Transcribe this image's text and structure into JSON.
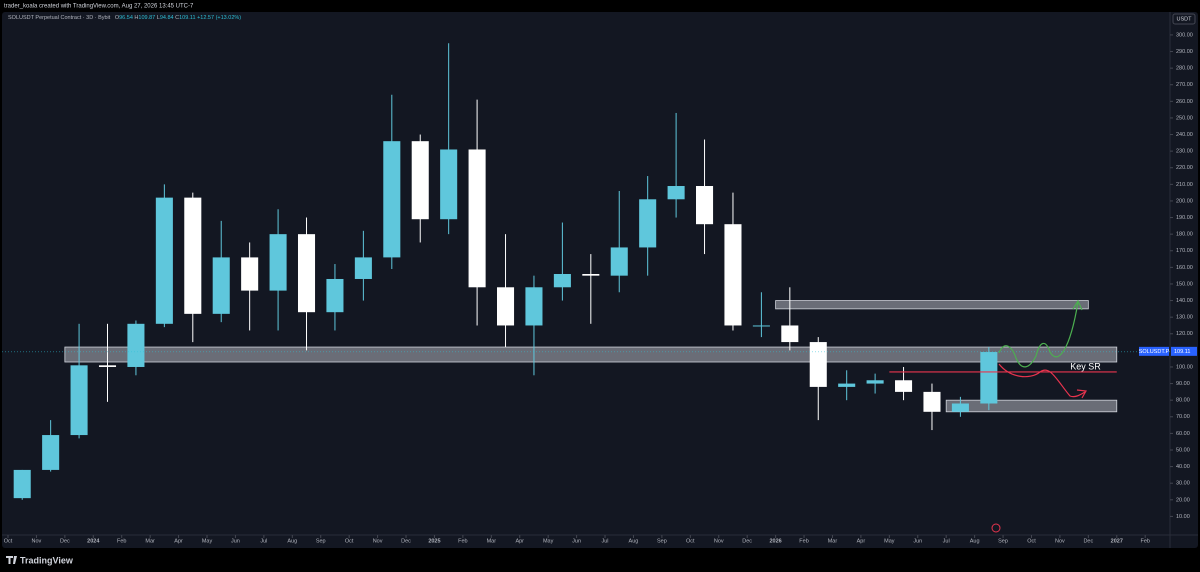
{
  "header": {
    "credit": "trader_koala created with TradingView.com, Aug 27, 2026 13:45 UTC-7"
  },
  "chart_data": {
    "type": "candlestick",
    "title": "SOLUSDT Perpetual Contract · 3D · Bybit",
    "legend": {
      "o_label": "O",
      "o": "96.54",
      "h_label": "H",
      "h": "109.87",
      "l_label": "L",
      "l": "94.84",
      "c_label": "C",
      "c": "109.11",
      "change": "+12.57 (+13.02%)"
    },
    "currency": "USDT",
    "symbol_tag": "SOLUSDT.P",
    "last_price": {
      "value": 109.11,
      "label": "109.11"
    },
    "up_color": "#5fc7dc",
    "down_color": "#ffffff",
    "grid": false,
    "x": [
      "2023-10",
      "2023-11",
      "2023-12",
      "2024-01",
      "2024-02",
      "2024-03",
      "2024-04",
      "2024-05",
      "2024-06",
      "2024-07",
      "2024-08",
      "2024-09",
      "2024-10",
      "2024-11",
      "2024-12",
      "2025-01",
      "2025-02",
      "2025-03",
      "2025-04",
      "2025-05",
      "2025-06",
      "2025-07",
      "2025-08",
      "2025-09",
      "2025-10",
      "2025-11",
      "2025-12",
      "2026-01",
      "2026-02",
      "2026-03",
      "2026-04",
      "2026-05",
      "2026-06",
      "2026-07",
      "2026-08"
    ],
    "open": [
      21,
      38,
      59,
      101,
      100,
      126,
      202,
      132,
      166,
      146,
      180,
      133,
      153,
      166,
      236,
      189,
      231,
      148,
      125,
      148,
      156,
      155,
      172,
      201,
      209,
      186,
      125,
      125,
      115,
      88,
      90,
      92,
      85,
      73,
      78
    ],
    "high": [
      38,
      68,
      126,
      126,
      128,
      210,
      205,
      188,
      175,
      195,
      190,
      162,
      182,
      264,
      240,
      295,
      261,
      180,
      155,
      187,
      168,
      206,
      215,
      253,
      237,
      205,
      145,
      148,
      118,
      98,
      96,
      100,
      90,
      82,
      112
    ],
    "low": [
      20,
      37,
      57,
      79,
      95,
      124,
      115,
      127,
      122,
      122,
      110,
      122,
      140,
      159,
      175,
      180,
      125,
      112,
      95,
      140,
      126,
      145,
      155,
      190,
      168,
      122,
      118,
      110,
      68,
      80,
      84,
      80,
      62,
      70,
      74
    ],
    "close": [
      38,
      59,
      101,
      100,
      126,
      202,
      132,
      166,
      146,
      180,
      133,
      153,
      166,
      236,
      189,
      231,
      148,
      125,
      148,
      156,
      155,
      172,
      201,
      209,
      186,
      125,
      125,
      115,
      88,
      90,
      92,
      85,
      73,
      78,
      109
    ],
    "ylim": [
      -1.2,
      312.6
    ],
    "yticks": [
      {
        "value": 10,
        "label": "10.00"
      },
      {
        "value": 20,
        "label": "20.00"
      },
      {
        "value": 30,
        "label": "30.00"
      },
      {
        "value": 40,
        "label": "40.00"
      },
      {
        "value": 50,
        "label": "50.00"
      },
      {
        "value": 60,
        "label": "60.00"
      },
      {
        "value": 70,
        "label": "70.00"
      },
      {
        "value": 80,
        "label": "80.00"
      },
      {
        "value": 90,
        "label": "90.00"
      },
      {
        "value": 100,
        "label": "100.00"
      },
      {
        "value": 120,
        "label": "120.00"
      },
      {
        "value": 130,
        "label": "130.00"
      },
      {
        "value": 140,
        "label": "140.00"
      },
      {
        "value": 150,
        "label": "150.00"
      },
      {
        "value": 160,
        "label": "160.00"
      },
      {
        "value": 170,
        "label": "170.00"
      },
      {
        "value": 180,
        "label": "180.00"
      },
      {
        "value": 190,
        "label": "190.00"
      },
      {
        "value": 200,
        "label": "200.00"
      },
      {
        "value": 210,
        "label": "210.00"
      },
      {
        "value": 220,
        "label": "220.00"
      },
      {
        "value": 230,
        "label": "230.00"
      },
      {
        "value": 240,
        "label": "240.00"
      },
      {
        "value": 250,
        "label": "250.00"
      },
      {
        "value": 260,
        "label": "260.00"
      },
      {
        "value": 270,
        "label": "270.00"
      },
      {
        "value": 280,
        "label": "280.00"
      },
      {
        "value": 290,
        "label": "290.00"
      },
      {
        "value": 300,
        "label": "300.00"
      }
    ],
    "xticks": [
      {
        "value": "2023-10",
        "label": "Oct"
      },
      {
        "value": "2023-11",
        "label": "Nov"
      },
      {
        "value": "2023-12",
        "label": "Dec"
      },
      {
        "value": "2024-01",
        "label": "2024"
      },
      {
        "value": "2024-02",
        "label": "Feb"
      },
      {
        "value": "2024-03",
        "label": "Mar"
      },
      {
        "value": "2024-04",
        "label": "Apr"
      },
      {
        "value": "2024-05",
        "label": "May"
      },
      {
        "value": "2024-06",
        "label": "Jun"
      },
      {
        "value": "2024-07",
        "label": "Jul"
      },
      {
        "value": "2024-08",
        "label": "Aug"
      },
      {
        "value": "2024-09",
        "label": "Sep"
      },
      {
        "value": "2024-10",
        "label": "Oct"
      },
      {
        "value": "2024-11",
        "label": "Nov"
      },
      {
        "value": "2024-12",
        "label": "Dec"
      },
      {
        "value": "2025-01",
        "label": "2025"
      },
      {
        "value": "2025-02",
        "label": "Feb"
      },
      {
        "value": "2025-03",
        "label": "Mar"
      },
      {
        "value": "2025-04",
        "label": "Apr"
      },
      {
        "value": "2025-05",
        "label": "May"
      },
      {
        "value": "2025-06",
        "label": "Jun"
      },
      {
        "value": "2025-07",
        "label": "Jul"
      },
      {
        "value": "2025-08",
        "label": "Aug"
      },
      {
        "value": "2025-09",
        "label": "Sep"
      },
      {
        "value": "2025-10",
        "label": "Oct"
      },
      {
        "value": "2025-11",
        "label": "Nov"
      },
      {
        "value": "2025-12",
        "label": "Dec"
      },
      {
        "value": "2026-01",
        "label": "2026"
      },
      {
        "value": "2026-02",
        "label": "Feb"
      },
      {
        "value": "2026-03",
        "label": "Mar"
      },
      {
        "value": "2026-04",
        "label": "Apr"
      },
      {
        "value": "2026-05",
        "label": "May"
      },
      {
        "value": "2026-06",
        "label": "Jun"
      },
      {
        "value": "2026-07",
        "label": "Jul"
      },
      {
        "value": "2026-08",
        "label": "Aug"
      },
      {
        "value": "2026-09",
        "label": "Sep"
      },
      {
        "value": "2026-10",
        "label": "Oct"
      },
      {
        "value": "2026-11",
        "label": "Nov"
      },
      {
        "value": "2026-12",
        "label": "Dec"
      },
      {
        "value": "2027-01",
        "label": "2027"
      },
      {
        "value": "2027-02",
        "label": "Feb"
      }
    ],
    "zones": [
      {
        "from": "2026-01",
        "to": "2026-12",
        "low": 135,
        "high": 140
      },
      {
        "from": "2023-12",
        "to": "2027-01",
        "low": 103,
        "high": 112
      },
      {
        "from": "2026-07",
        "to": "2027-01",
        "low": 73,
        "high": 80
      }
    ],
    "key_level": {
      "label": "Key SR",
      "value": 97,
      "from": "2026-05",
      "to": "2027-01",
      "color": "#e8344e"
    }
  },
  "footer": {
    "brand": "TradingView"
  }
}
